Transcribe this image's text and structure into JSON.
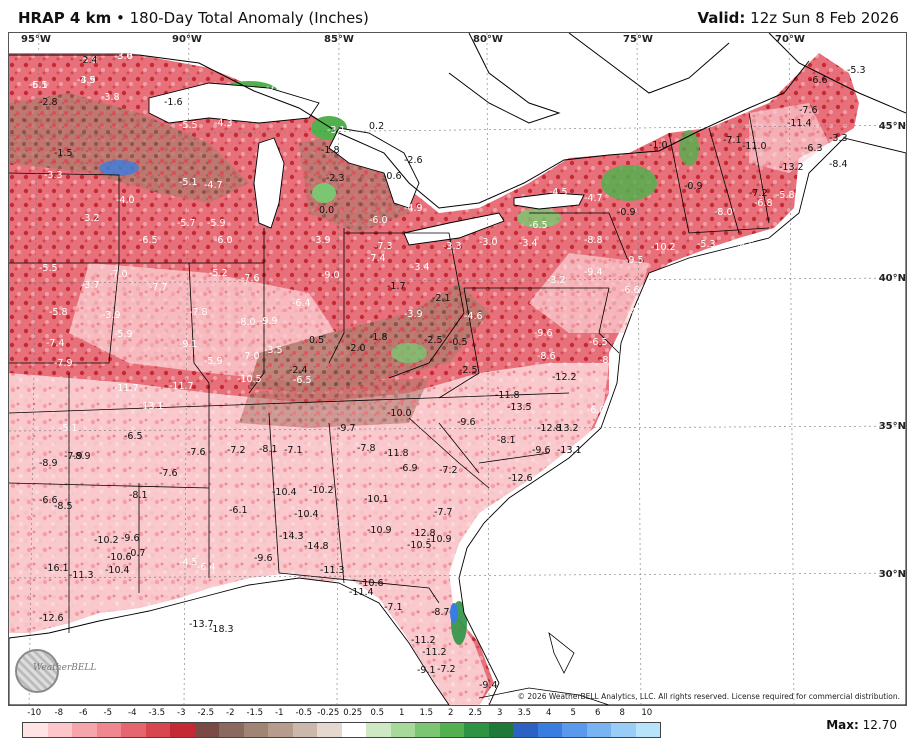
{
  "header": {
    "model": "HRAP 4 km",
    "bullet": "•",
    "product": "180-Day Total Anomaly (Inches)",
    "valid_label": "Valid:",
    "valid_value": "12z Sun 8 Feb 2026"
  },
  "axes": {
    "longitudes": [
      "95°W",
      "90°W",
      "85°W",
      "80°W",
      "75°W",
      "70°W"
    ],
    "latitudes": [
      "45°N",
      "40°N",
      "35°N",
      "30°N"
    ]
  },
  "legend": {
    "ticks": [
      "-10",
      "-8",
      "-6",
      "-5",
      "-4",
      "-3.5",
      "-3",
      "-2.5",
      "-2",
      "-1.5",
      "-1",
      "-0.5",
      "-0.25",
      "0.25",
      "0.5",
      "1",
      "1.5",
      "2",
      "2.5",
      "3",
      "3.5",
      "4",
      "5",
      "6",
      "8",
      "10"
    ],
    "colors": [
      "#ffe4e6",
      "#fcc6ca",
      "#f6a5ab",
      "#f0878e",
      "#e66670",
      "#d84650",
      "#c42a33",
      "#7a4b44",
      "#8a6a5e",
      "#a08474",
      "#b59c8c",
      "#ccb8aa",
      "#e4d8cf",
      "#ffffff",
      "#cdeac4",
      "#a6d99a",
      "#7cc572",
      "#53b04f",
      "#2e9444",
      "#1f7a3a",
      "#2d62c2",
      "#3a7de0",
      "#5a99ec",
      "#79b3f2",
      "#99cdf7",
      "#b8e4fb"
    ]
  },
  "max": {
    "label": "Max:",
    "value": "12.70"
  },
  "copyright": "© 2026 WeatherBELL Analytics, LLC. All rights reserved. License required for commercial distribution.",
  "logo_text": "WeatherBELL",
  "anomalies": [
    {
      "v": "-4.4"
    },
    {
      "v": "-5.6"
    },
    {
      "v": "-3.0"
    },
    {
      "v": "-3.9"
    },
    {
      "v": "-5.1"
    },
    {
      "v": "-2.8"
    },
    {
      "v": "-3.8"
    },
    {
      "v": "-5.5"
    },
    {
      "v": "-4.3"
    },
    {
      "v": "-1.5"
    },
    {
      "v": "-3.3"
    },
    {
      "v": "-5.1"
    },
    {
      "v": "-4.7"
    },
    {
      "v": "-4.0"
    },
    {
      "v": "-3.2"
    },
    {
      "v": "-5.7"
    },
    {
      "v": "-5.9"
    },
    {
      "v": "-6.0"
    },
    {
      "v": "-6.5"
    },
    {
      "v": "-5.5"
    },
    {
      "v": "-7.0"
    },
    {
      "v": "-3.7"
    },
    {
      "v": "-7.7"
    },
    {
      "v": "-5.2"
    },
    {
      "v": "-7.6"
    },
    {
      "v": "-8.0"
    },
    {
      "v": "-3.9"
    },
    {
      "v": "-7.3"
    },
    {
      "v": "-7.4"
    },
    {
      "v": "-3.4"
    },
    {
      "v": "-3.3"
    },
    {
      "v": "-3.0"
    },
    {
      "v": "-3.4"
    },
    {
      "v": "-6.5"
    },
    {
      "v": "-8.8"
    },
    {
      "v": "-9.0"
    },
    {
      "v": "-9.4"
    },
    {
      "v": "-9.5"
    },
    {
      "v": "-10.2"
    },
    {
      "v": "-5.3"
    },
    {
      "v": "-8.5"
    },
    {
      "v": "-8.0"
    },
    {
      "v": "-5.8"
    },
    {
      "v": "-3.9"
    },
    {
      "v": "-5.9"
    },
    {
      "v": "-7.8"
    },
    {
      "v": "-6.4"
    },
    {
      "v": "-9.9"
    },
    {
      "v": "-9.1"
    },
    {
      "v": "-7.4"
    },
    {
      "v": "-7.9"
    },
    {
      "v": "-5.9"
    },
    {
      "v": "-7.0"
    },
    {
      "v": "-9.6"
    },
    {
      "v": "-8.6"
    },
    {
      "v": "-11.7"
    },
    {
      "v": "-11.7"
    },
    {
      "v": "-13.1"
    },
    {
      "v": "-10.5"
    },
    {
      "v": "-6.5"
    },
    {
      "v": "-11.8"
    },
    {
      "v": "-13.5"
    },
    {
      "v": "-12.2"
    },
    {
      "v": "-10.0"
    },
    {
      "v": "-9.6"
    },
    {
      "v": "-9.7"
    },
    {
      "v": "-12.8"
    },
    {
      "v": "-13.2"
    },
    {
      "v": "-8.1"
    },
    {
      "v": "-9.6"
    },
    {
      "v": "-13.1"
    },
    {
      "v": "-6.5"
    },
    {
      "v": "-8.9"
    },
    {
      "v": "-7.2"
    },
    {
      "v": "-8.1"
    },
    {
      "v": "-7.1"
    },
    {
      "v": "-7.8"
    },
    {
      "v": "-11.8"
    },
    {
      "v": "-6.9"
    },
    {
      "v": "-7.2"
    },
    {
      "v": "-7.6"
    },
    {
      "v": "-12.6"
    },
    {
      "v": "-8.9"
    },
    {
      "v": "-7.9"
    },
    {
      "v": "-6.6"
    },
    {
      "v": "-8.5"
    },
    {
      "v": "-8.1"
    },
    {
      "v": "-7.6"
    },
    {
      "v": "-10.4"
    },
    {
      "v": "-10.2"
    },
    {
      "v": "-10.1"
    },
    {
      "v": "-7.7"
    },
    {
      "v": "-10.4"
    },
    {
      "v": "-6.1"
    },
    {
      "v": "-10.2"
    },
    {
      "v": "-9.6"
    },
    {
      "v": "-10.6"
    },
    {
      "v": "-14.3"
    },
    {
      "v": "-14.8"
    },
    {
      "v": "-10.9"
    },
    {
      "v": "-12.8"
    },
    {
      "v": "-10.5"
    },
    {
      "v": "-10.9"
    },
    {
      "v": "-16.1"
    },
    {
      "v": "-11.3"
    },
    {
      "v": "-10.4"
    },
    {
      "v": "-9.6"
    },
    {
      "v": "-11.3"
    },
    {
      "v": "-10.6"
    },
    {
      "v": "-11.4"
    },
    {
      "v": "-7.1"
    },
    {
      "v": "-8.7"
    },
    {
      "v": "-12.6"
    },
    {
      "v": "-13.7"
    },
    {
      "v": "-18.3"
    },
    {
      "v": "-11.2"
    },
    {
      "v": "-11.2"
    },
    {
      "v": "-9.1"
    },
    {
      "v": "-7.2"
    },
    {
      "v": "-9.4"
    },
    {
      "v": "-6.6"
    },
    {
      "v": "-7.6"
    },
    {
      "v": "-5.3"
    },
    {
      "v": "-3.3"
    },
    {
      "v": "-11.4"
    },
    {
      "v": "-8.4"
    },
    {
      "v": "-6.3"
    },
    {
      "v": "-13.2"
    },
    {
      "v": "-11.0"
    },
    {
      "v": "-7.1"
    },
    {
      "v": "-7.2"
    },
    {
      "v": "-5.8"
    },
    {
      "v": "-6.8"
    },
    {
      "v": "-6.2"
    },
    {
      "v": "-1.0"
    },
    {
      "v": "-5.7"
    },
    {
      "v": "-4.7"
    },
    {
      "v": "-0.9"
    },
    {
      "v": "-0.9"
    },
    {
      "v": "-4.5"
    },
    {
      "v": "-7.2"
    },
    {
      "v": "-1.6"
    },
    {
      "v": "-3.1"
    },
    {
      "v": "-1.8"
    },
    {
      "v": "-2.3"
    },
    {
      "v": "-0.6"
    },
    {
      "v": "-2.6"
    },
    {
      "v": "0.2"
    },
    {
      "v": "0.0"
    },
    {
      "v": "-4.9"
    },
    {
      "v": "-6.0"
    },
    {
      "v": "-1.7"
    },
    {
      "v": "-2.1"
    },
    {
      "v": "-4.6"
    },
    {
      "v": "-3.9"
    },
    {
      "v": "-2.5"
    },
    {
      "v": "-1.8"
    },
    {
      "v": "-2.0"
    },
    {
      "v": "0.5"
    },
    {
      "v": "-0.5"
    },
    {
      "v": "-2.5"
    },
    {
      "v": "-3.5"
    },
    {
      "v": "-2.4"
    },
    {
      "v": "-0.7"
    },
    {
      "v": "-4.5"
    },
    {
      "v": "-6.4"
    },
    {
      "v": "-6.6"
    },
    {
      "v": "-4.8"
    },
    {
      "v": "-6.8"
    },
    {
      "v": "-8.5"
    },
    {
      "v": "-6.0"
    },
    {
      "v": "-3.2"
    },
    {
      "v": "-6.5"
    },
    {
      "v": "-5.1"
    },
    {
      "v": "-4.9"
    },
    {
      "v": "-2.4"
    },
    {
      "v": "-3.6"
    },
    {
      "v": "-4.5"
    },
    {
      "v": "-6.5"
    }
  ]
}
